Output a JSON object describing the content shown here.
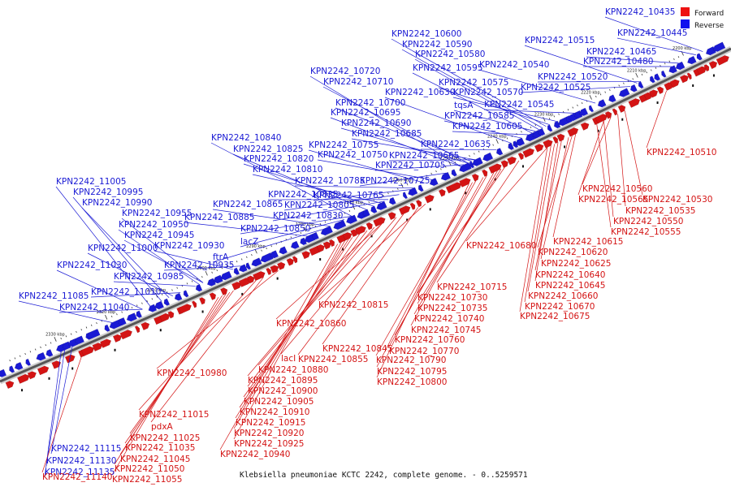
{
  "caption": "Klebsiella pneumoniae KCTC 2242, complete genome. - 0..5259571",
  "legend": [
    {
      "label": "Forward",
      "color": "#ee1111"
    },
    {
      "label": "Reverse",
      "color": "#1111ee"
    }
  ],
  "colors": {
    "forward": "#d41414",
    "reverse": "#1a1ad4",
    "backbone": "#555555"
  },
  "ticks": [
    "2200 kbp",
    "2210 kbp",
    "2220 kbp",
    "2230 kbp",
    "2240 kbp",
    "2250 kbp",
    "2260 kbp",
    "2270 kbp",
    "2280 kbp",
    "2290 kbp",
    "2300 kbp",
    "2310 kbp",
    "2320 kbp",
    "2330 kbp"
  ],
  "reverse_labels": [
    "KPN2242_10435",
    "KPN2242_10445",
    "KPN2242_10465",
    "KPN2242_10480",
    "KPN2242_10515",
    "KPN2242_10520",
    "KPN2242_10525",
    "KPN2242_10600",
    "KPN2242_10590",
    "KPN2242_10580",
    "KPN2242_10595",
    "KPN2242_10540",
    "KPN2242_10575",
    "KPN2242_10570",
    "KPN2242_10630",
    "tqsA",
    "KPN2242_10545",
    "KPN2242_10585",
    "KPN2242_10605",
    "KPN2242_10720",
    "KPN2242_10710",
    "KPN2242_10700",
    "KPN2242_10695",
    "KPN2242_10690",
    "KPN2242_10685",
    "KPN2242_10635",
    "KPN2242_10665",
    "KPN2242_10705",
    "KPN2242_10755",
    "KPN2242_10750",
    "KPN2242_10840",
    "KPN2242_10825",
    "KPN2242_10820",
    "KPN2242_10810",
    "KPN2242_10785",
    "KPN2242_10725",
    "KPN2242_10835",
    "KPN2242_10765",
    "KPN2242_10865",
    "KPN2242_10805",
    "KPN2242_10830",
    "KPN2242_10885",
    "KPN2242_10850",
    "lacZ",
    "ftrA",
    "KPN2242_11005",
    "KPN2242_10995",
    "KPN2242_10990",
    "KPN2242_10955",
    "KPN2242_10950",
    "KPN2242_10945",
    "KPN2242_11000",
    "KPN2242_10930",
    "KPN2242_11030",
    "KPN2242_10935",
    "KPN2242_10985",
    "KPN2242_11010",
    "KPN2242_11085",
    "KPN2242_11040",
    "KPN2242_11115",
    "KPN2242_11130",
    "KPN2242_11135"
  ],
  "forward_labels": [
    "KPN2242_10510",
    "KPN2242_10560",
    "KPN2242_10565",
    "KPN2242_10530",
    "KPN2242_10535",
    "KPN2242_10550",
    "KPN2242_10555",
    "KPN2242_10615",
    "KPN2242_10680",
    "KPN2242_10620",
    "KPN2242_10625",
    "KPN2242_10640",
    "KPN2242_10645",
    "KPN2242_10660",
    "KPN2242_10670",
    "KPN2242_10675",
    "KPN2242_10715",
    "KPN2242_10730",
    "KPN2242_10735",
    "KPN2242_10740",
    "KPN2242_10745",
    "KPN2242_10760",
    "KPN2242_10770",
    "KPN2242_10790",
    "KPN2242_10795",
    "KPN2242_10800",
    "KPN2242_10815",
    "KPN2242_10860",
    "KPN2242_10845",
    "lacI",
    "KPN2242_10855",
    "KPN2242_10880",
    "KPN2242_10895",
    "KPN2242_10900",
    "KPN2242_10905",
    "KPN2242_10910",
    "KPN2242_10915",
    "KPN2242_10920",
    "KPN2242_10925",
    "KPN2242_10940",
    "KPN2242_10980",
    "KPN2242_11015",
    "pdxA",
    "KPN2242_11025",
    "KPN2242_11035",
    "KPN2242_11045",
    "KPN2242_11050",
    "KPN2242_11055",
    "KPN2242_11140"
  ]
}
